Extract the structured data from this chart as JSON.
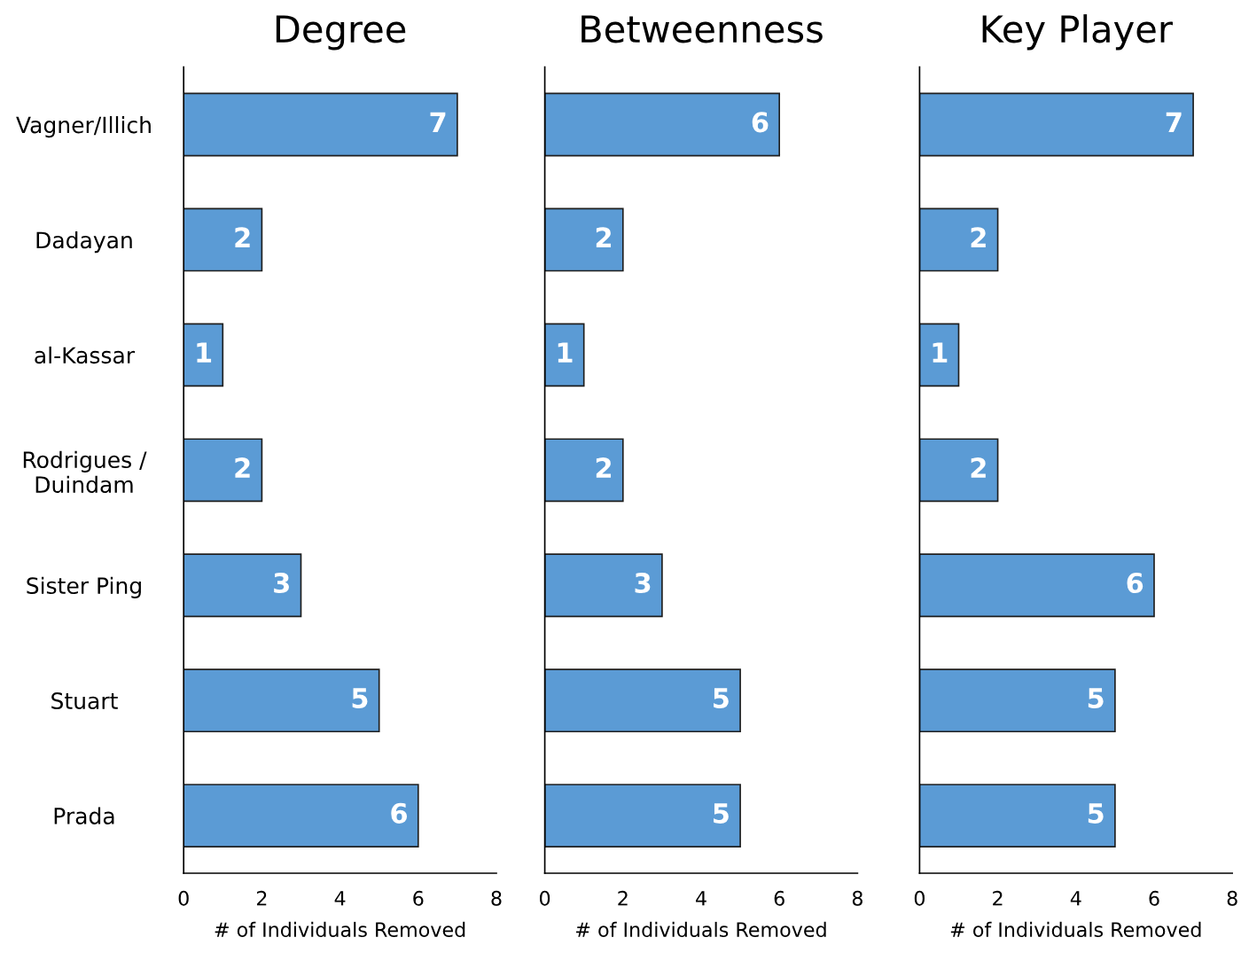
{
  "chart_data": [
    {
      "type": "bar",
      "orientation": "horizontal",
      "title": "Degree",
      "xlabel": "# of Individuals Removed",
      "categories": [
        "Vagner/Illich",
        "Dadayan",
        "al-Kassar",
        "Rodrigues /\nDuindam",
        "Sister Ping",
        "Stuart",
        "Prada"
      ],
      "values": [
        7,
        2,
        1,
        2,
        3,
        5,
        6
      ],
      "color": "#5b9bd5",
      "xlim": [
        0,
        8
      ],
      "xticks": [
        0,
        2,
        4,
        6,
        8
      ],
      "data_labels": true,
      "grid": false,
      "legend": false
    },
    {
      "type": "bar",
      "orientation": "horizontal",
      "title": "Betweenness",
      "xlabel": "# of Individuals Removed",
      "categories": [
        null,
        null,
        null,
        null,
        null,
        null,
        null
      ],
      "values": [
        6,
        2,
        1,
        2,
        3,
        5,
        5
      ],
      "color": "#5b9bd5",
      "xlim": [
        0,
        8
      ],
      "xticks": [
        0,
        2,
        4,
        6,
        8
      ],
      "data_labels": true,
      "grid": false,
      "legend": false,
      "tick_labels": "x"
    },
    {
      "type": "bar",
      "orientation": "horizontal",
      "title": "Key Player",
      "xlabel": "# of Individuals Removed",
      "categories": [
        null,
        null,
        null,
        null,
        null,
        null,
        null
      ],
      "values": [
        7,
        2,
        1,
        2,
        6,
        5,
        5
      ],
      "color": "#5b9bd5",
      "xlim": [
        0,
        8
      ],
      "xticks": [
        0,
        2,
        4,
        6,
        8
      ],
      "data_labels": true,
      "grid": false,
      "legend": false,
      "tick_labels": "x"
    }
  ]
}
